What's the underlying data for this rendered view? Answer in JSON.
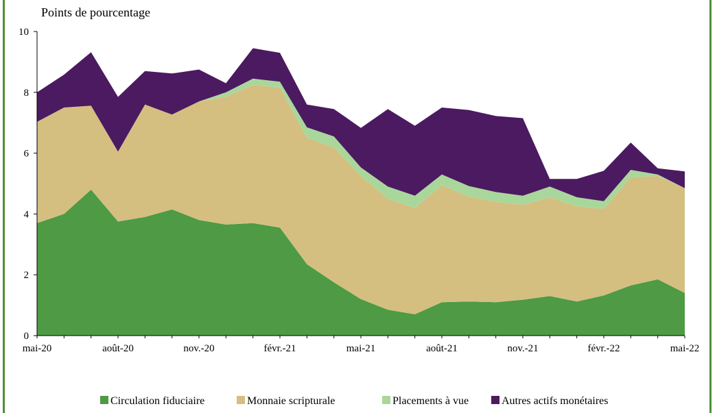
{
  "colors": {
    "frame": "#4e8f3a"
  },
  "chart_data": {
    "type": "area",
    "stacked": true,
    "ylabel": "Points de pourcentage",
    "ylim": [
      0,
      10
    ],
    "yticks": [
      0,
      2,
      4,
      6,
      8,
      10
    ],
    "x": [
      "mai-20",
      "juin-20",
      "juil.-20",
      "août-20",
      "sept.-20",
      "oct.-20",
      "nov.-20",
      "déc.-20",
      "janv.-21",
      "févr.-21",
      "mars-21",
      "avr.-21",
      "mai-21",
      "juin-21",
      "juil.-21",
      "août-21",
      "sept.-21",
      "oct.-21",
      "nov.-21",
      "déc.-21",
      "janv.-22",
      "févr.-22",
      "mars-22",
      "avr.-22",
      "mai-22"
    ],
    "xtick_labels": [
      "mai-20",
      "août-20",
      "nov.-20",
      "févr.-21",
      "mai-21",
      "août-21",
      "nov.-21",
      "févr.-22",
      "mai-22"
    ],
    "xtick_positions": [
      0,
      3,
      6,
      9,
      12,
      15,
      18,
      21,
      24
    ],
    "grid": false,
    "legend_position": "bottom",
    "series": [
      {
        "name": "Circulation fiduciaire",
        "color": "#4e9a45",
        "values": [
          3.7,
          4.0,
          4.8,
          3.75,
          3.9,
          4.15,
          3.8,
          3.65,
          3.7,
          3.55,
          2.35,
          1.75,
          1.2,
          0.85,
          0.7,
          1.1,
          1.12,
          1.1,
          1.18,
          1.3,
          1.12,
          1.32,
          1.65,
          1.85,
          1.4
        ]
      },
      {
        "name": "Monnaie scripturale",
        "color": "#d4bf80",
        "values": [
          3.33,
          3.5,
          2.76,
          2.3,
          3.7,
          3.12,
          3.9,
          4.2,
          4.55,
          4.6,
          4.15,
          4.45,
          4.05,
          3.65,
          3.5,
          3.85,
          3.45,
          3.3,
          3.12,
          3.25,
          3.13,
          2.85,
          3.55,
          3.4,
          3.45
        ]
      },
      {
        "name": "Placements à vue",
        "color": "#a9d79b",
        "values": [
          0.0,
          0.0,
          0.0,
          0.0,
          0.0,
          0.0,
          0.0,
          0.15,
          0.2,
          0.2,
          0.35,
          0.35,
          0.28,
          0.4,
          0.4,
          0.35,
          0.35,
          0.32,
          0.3,
          0.35,
          0.3,
          0.25,
          0.25,
          0.05,
          0.0
        ]
      },
      {
        "name": "Autres actifs monétaires",
        "color": "#4b1a60",
        "values": [
          0.97,
          1.08,
          1.76,
          1.8,
          1.1,
          1.35,
          1.05,
          0.3,
          1.0,
          0.95,
          0.75,
          0.9,
          1.3,
          2.55,
          2.3,
          2.2,
          2.5,
          2.5,
          2.55,
          0.25,
          0.6,
          1.0,
          0.9,
          0.2,
          0.55
        ]
      }
    ]
  }
}
